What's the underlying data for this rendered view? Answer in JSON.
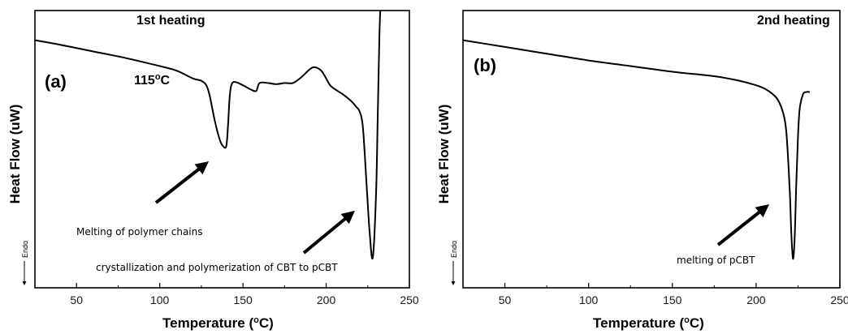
{
  "chart_data": [
    {
      "type": "line",
      "panel_label": "(a)",
      "title": "1st heating",
      "xlabel": "Temperature (°C)",
      "xlabel_main": "Temperature (",
      "xlabel_unit_sup": "o",
      "xlabel_unit_tail": "C)",
      "ylabel": "Heat Flow (uW)",
      "endo_label": "Endo",
      "xlim": [
        25,
        250
      ],
      "xticks": [
        50,
        100,
        150,
        200,
        250
      ],
      "series": [
        {
          "x": [
            25,
            40,
            60,
            80,
            100,
            110,
            120,
            125,
            128,
            130,
            133,
            136,
            138,
            140,
            141,
            142,
            143,
            145,
            150,
            155,
            158,
            160,
            165,
            170,
            175,
            180,
            185,
            190,
            193,
            197,
            200,
            203,
            210,
            215,
            218,
            220,
            222,
            224,
            226,
            228,
            230,
            231,
            232,
            233
          ],
          "y": [
            0.96,
            0.92,
            0.86,
            0.8,
            0.73,
            0.69,
            0.62,
            0.6,
            0.56,
            0.47,
            0.25,
            0.08,
            0.02,
            0.02,
            0.2,
            0.45,
            0.56,
            0.59,
            0.56,
            0.52,
            0.51,
            0.58,
            0.58,
            0.57,
            0.58,
            0.58,
            0.63,
            0.7,
            0.72,
            0.69,
            0.62,
            0.55,
            0.48,
            0.42,
            0.37,
            0.33,
            0.2,
            -0.25,
            -0.72,
            -0.97,
            -0.4,
            0.3,
            1.0,
            1.4
          ]
        }
      ],
      "annotations": {
        "temp_main": "115",
        "temp_sup": "o",
        "temp_tail": "C",
        "label_1": "Melting of polymer chains",
        "label_2": "crystallization  and polymerization of CBT to pCBT"
      }
    },
    {
      "type": "line",
      "panel_label": "(b)",
      "title": "2nd heating",
      "xlabel": "Temperature (°C)",
      "xlabel_main": "Temperature (",
      "xlabel_unit_sup": "o",
      "xlabel_unit_tail": "C)",
      "ylabel": "Heat Flow (uW)",
      "endo_label": "Endo",
      "xlim": [
        25,
        250
      ],
      "xticks": [
        50,
        100,
        150,
        200,
        250
      ],
      "series": [
        {
          "x": [
            25,
            50,
            75,
            100,
            125,
            150,
            175,
            190,
            200,
            205,
            210,
            213,
            216,
            218,
            220,
            221,
            222,
            223,
            224,
            225,
            226,
            228,
            230,
            232
          ],
          "y": [
            0.96,
            0.9,
            0.84,
            0.78,
            0.73,
            0.68,
            0.64,
            0.6,
            0.56,
            0.53,
            0.48,
            0.43,
            0.32,
            0.15,
            -0.35,
            -0.75,
            -0.98,
            -0.8,
            -0.3,
            0.1,
            0.35,
            0.48,
            0.5,
            0.5
          ]
        }
      ],
      "annotations": {
        "label_1": "melting of pCBT"
      }
    }
  ]
}
